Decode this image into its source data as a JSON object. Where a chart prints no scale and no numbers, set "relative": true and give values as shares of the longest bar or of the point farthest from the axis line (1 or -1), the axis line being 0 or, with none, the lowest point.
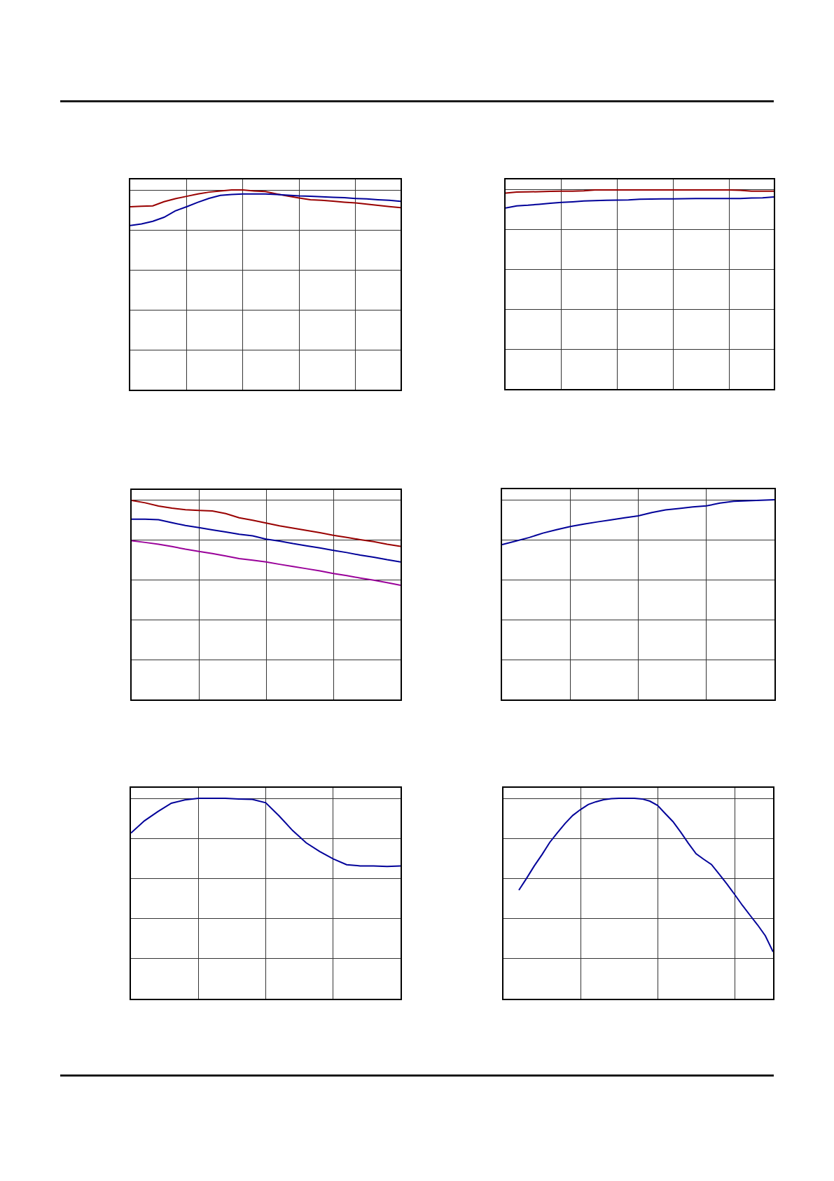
{
  "chart_data": [
    {
      "type": "line",
      "relative": true,
      "grid": true,
      "categories": [
        null,
        null,
        null,
        null,
        null,
        null,
        null,
        null,
        null,
        null,
        null,
        null,
        null,
        null,
        null,
        null,
        null,
        null,
        null,
        null,
        null,
        null,
        null,
        null,
        null
      ],
      "series": [
        {
          "color": "#990000",
          "values": [
            0.916,
            0.918,
            0.92,
            0.941,
            0.956,
            0.968,
            0.98,
            0.989,
            0.995,
            1,
            1,
            0.995,
            0.992,
            0.98,
            0.969,
            0.96,
            0.951,
            0.948,
            0.944,
            0.939,
            0.935,
            0.929,
            0.923,
            0.917,
            0.911
          ]
        },
        {
          "color": "#000099",
          "values": [
            0.822,
            0.83,
            0.843,
            0.863,
            0.895,
            0.916,
            0.938,
            0.958,
            0.973,
            0.977,
            0.98,
            0.98,
            0.98,
            0.977,
            0.974,
            0.97,
            0.968,
            0.966,
            0.963,
            0.961,
            0.957,
            0.955,
            0.951,
            0.948,
            0.943
          ]
        }
      ]
    },
    {
      "type": "line",
      "relative": true,
      "grid": true,
      "categories": [
        null,
        null,
        null,
        null,
        null,
        null,
        null,
        null,
        null,
        null,
        null,
        null,
        null,
        null,
        null,
        null,
        null,
        null,
        null,
        null,
        null,
        null,
        null,
        null,
        null
      ],
      "series": [
        {
          "color": "#990000",
          "values": [
            0.984,
            0.989,
            0.99,
            0.991,
            0.993,
            0.994,
            0.994,
            0.995,
            1,
            1,
            1,
            1,
            1,
            1,
            1,
            1,
            1,
            1,
            1,
            1,
            1,
            0.998,
            0.994,
            0.994,
            0.994
          ]
        },
        {
          "color": "#000099",
          "values": [
            0.909,
            0.92,
            0.923,
            0.928,
            0.933,
            0.937,
            0.94,
            0.944,
            0.946,
            0.948,
            0.949,
            0.95,
            0.953,
            0.954,
            0.955,
            0.955,
            0.956,
            0.957,
            0.957,
            0.957,
            0.957,
            0.957,
            0.959,
            0.96,
            0.965
          ]
        }
      ]
    },
    {
      "type": "line",
      "relative": true,
      "grid": true,
      "categories": [
        null,
        null,
        null,
        null,
        null,
        null,
        null,
        null,
        null,
        null,
        null,
        null,
        null,
        null,
        null,
        null,
        null,
        null,
        null,
        null,
        null
      ],
      "series": [
        {
          "color": "#990000",
          "values": [
            1,
            0.988,
            0.972,
            0.961,
            0.953,
            0.95,
            0.947,
            0.934,
            0.913,
            0.9,
            0.886,
            0.872,
            0.861,
            0.849,
            0.838,
            0.825,
            0.814,
            0.803,
            0.793,
            0.78,
            0.769
          ]
        },
        {
          "color": "#000099",
          "values": [
            0.906,
            0.906,
            0.903,
            0.888,
            0.874,
            0.863,
            0.852,
            0.841,
            0.83,
            0.822,
            0.805,
            0.796,
            0.783,
            0.772,
            0.761,
            0.749,
            0.738,
            0.725,
            0.715,
            0.702,
            0.691
          ]
        },
        {
          "color": "#990099",
          "values": [
            0.797,
            0.789,
            0.78,
            0.768,
            0.755,
            0.744,
            0.733,
            0.721,
            0.708,
            0.7,
            0.691,
            0.679,
            0.668,
            0.657,
            0.646,
            0.633,
            0.622,
            0.61,
            0.599,
            0.587,
            0.574
          ]
        }
      ]
    },
    {
      "type": "line",
      "relative": true,
      "grid": true,
      "categories": [
        null,
        null,
        null,
        null,
        null,
        null,
        null,
        null,
        null,
        null,
        null,
        null,
        null,
        null,
        null,
        null,
        null,
        null,
        null,
        null,
        null
      ],
      "series": [
        {
          "color": "#000099",
          "values": [
            0.775,
            0.793,
            0.811,
            0.833,
            0.85,
            0.866,
            0.878,
            0.889,
            0.899,
            0.91,
            0.919,
            0.936,
            0.949,
            0.956,
            0.964,
            0.969,
            0.983,
            0.992,
            0.995,
            0.997,
            1
          ]
        }
      ]
    },
    {
      "type": "line",
      "relative": true,
      "grid": true,
      "categories": [
        null,
        null,
        null,
        null,
        null,
        null,
        null,
        null,
        null,
        null,
        null,
        null,
        null,
        null,
        null,
        null,
        null,
        null,
        null,
        null,
        null
      ],
      "series": [
        {
          "color": "#000099",
          "values": [
            0.827,
            0.888,
            0.934,
            0.976,
            0.992,
            1,
            1,
            1,
            0.997,
            0.995,
            0.978,
            0.912,
            0.839,
            0.778,
            0.735,
            0.698,
            0.669,
            0.663,
            0.663,
            0.66,
            0.663
          ]
        }
      ]
    },
    {
      "type": "line",
      "relative": true,
      "grid": true,
      "categories": [
        null,
        null,
        null,
        null,
        null,
        null,
        null,
        null,
        null,
        null,
        null,
        null,
        null,
        null,
        null,
        null,
        null,
        null,
        null,
        null,
        null,
        null,
        null,
        null,
        null,
        null,
        null,
        null,
        null,
        null,
        null,
        null,
        null,
        null,
        null,
        null
      ],
      "series": [
        {
          "color": "#000099",
          "values": [
            null,
            null,
            0.542,
            0.601,
            0.663,
            0.719,
            0.78,
            0.828,
            0.875,
            0.915,
            0.944,
            0.969,
            0.983,
            0.993,
            0.998,
            1,
            1,
            1,
            0.997,
            0.986,
            0.965,
            0.924,
            0.884,
            0.832,
            0.776,
            0.724,
            0.696,
            0.67,
            0.622,
            0.573,
            0.521,
            0.467,
            0.417,
            0.368,
            0.314,
            0.234
          ]
        }
      ]
    }
  ]
}
